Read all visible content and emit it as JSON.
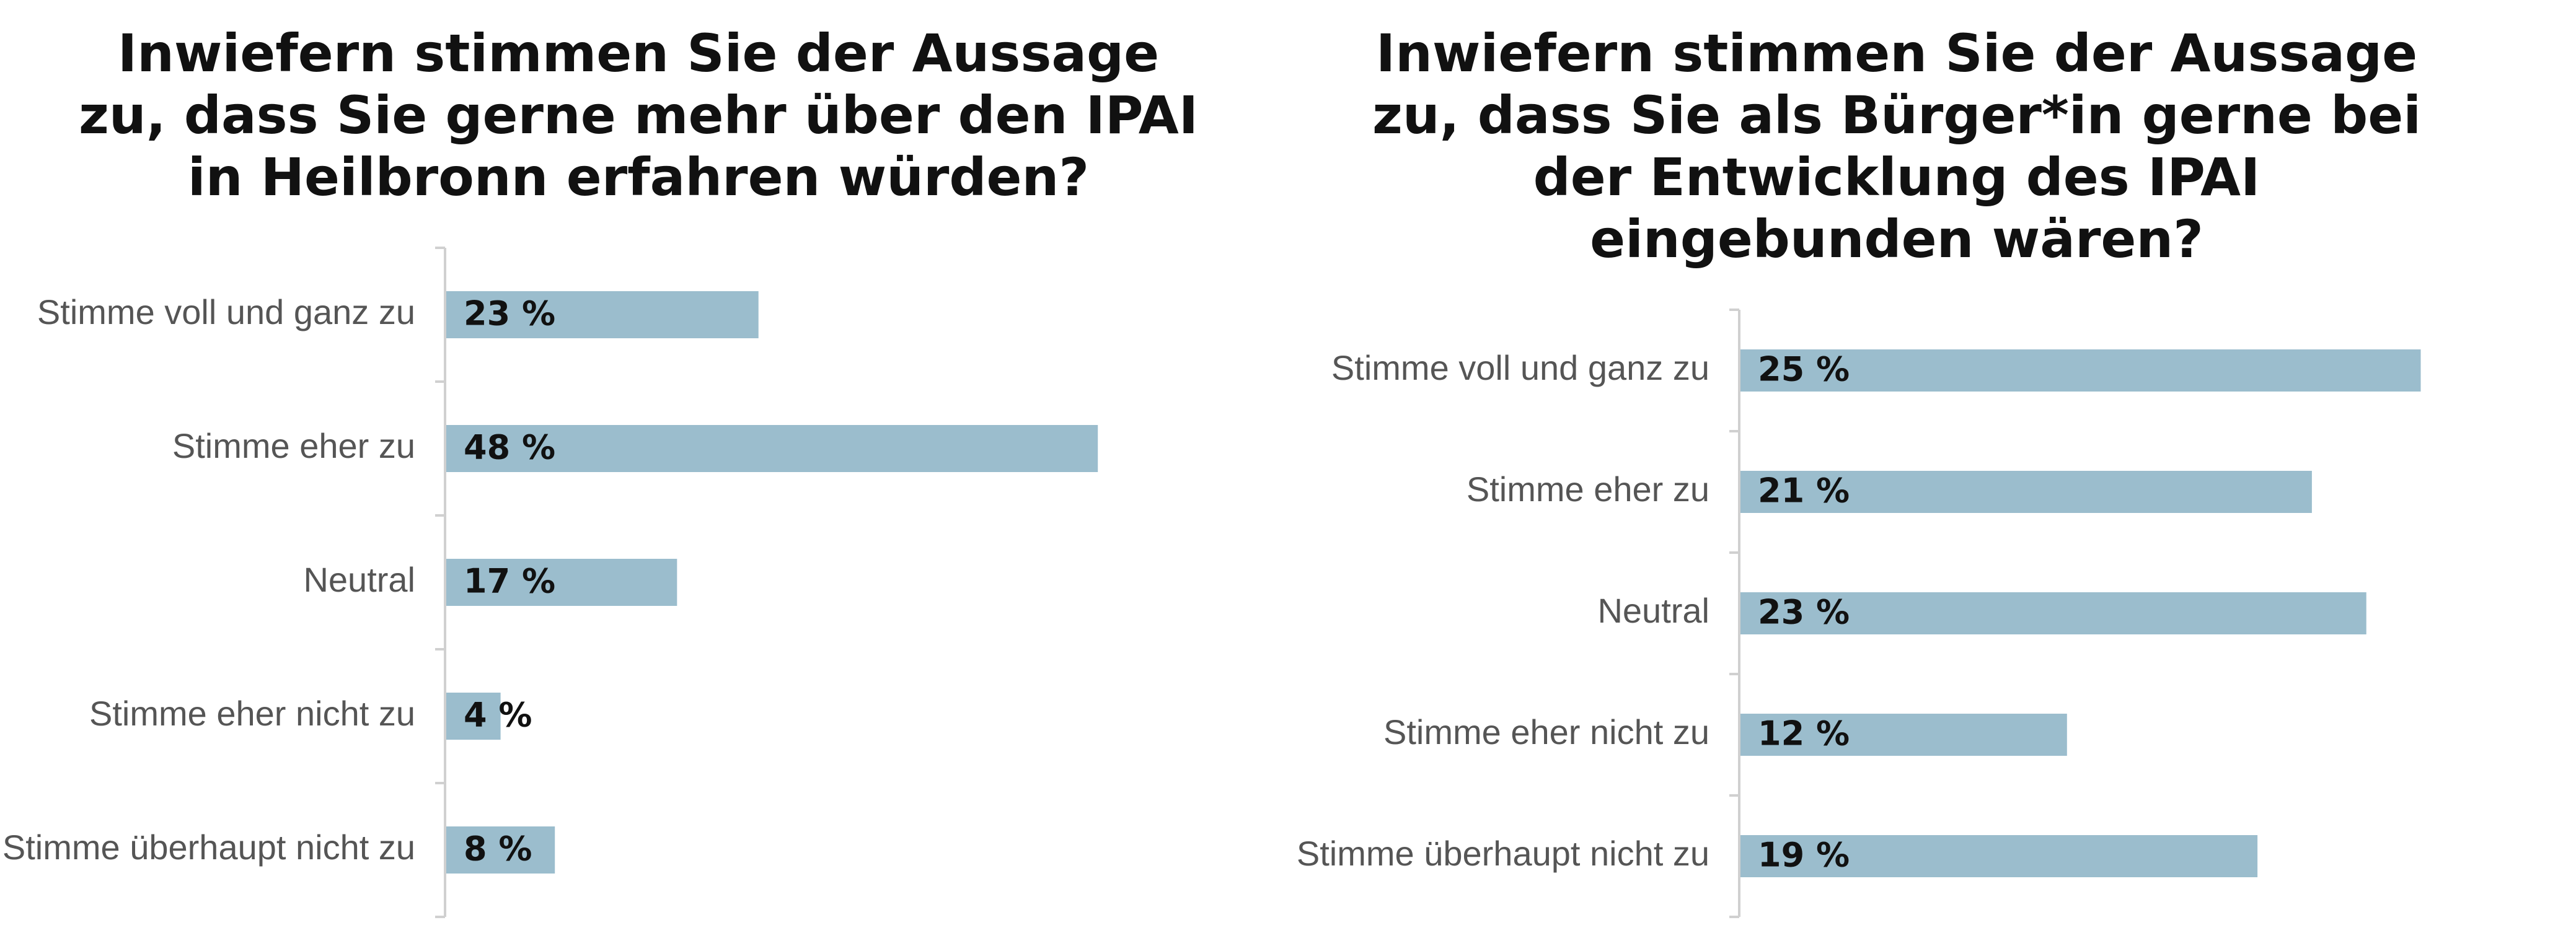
{
  "colors": {
    "bar": "#9BBDCD",
    "axis": "#D0D0D0",
    "category_text": "#555555",
    "value_text": "#111111",
    "title_text": "#111111"
  },
  "chart_data": [
    {
      "type": "bar",
      "orientation": "horizontal",
      "title": "Inwiefern stimmen Sie der Aussage zu, dass Sie gerne mehr über den IPAI in Heilbronn erfahren würden?",
      "categories": [
        "Stimme voll und ganz zu",
        "Stimme eher zu",
        "Neutral",
        "Stimme eher nicht zu",
        "Stimme überhaupt nicht zu"
      ],
      "values": [
        23,
        48,
        17,
        4,
        8
      ],
      "value_labels": [
        "23 %",
        "48 %",
        "17 %",
        "4 %",
        "8 %"
      ],
      "unit": "%",
      "grid": false,
      "legend": "none"
    },
    {
      "type": "bar",
      "orientation": "horizontal",
      "title": "Inwiefern stimmen Sie der Aussage zu, dass Sie als Bürger*in gerne bei der Entwicklung des IPAI eingebunden wären?",
      "categories": [
        "Stimme voll und ganz zu",
        "Stimme eher zu",
        "Neutral",
        "Stimme eher nicht zu",
        "Stimme überhaupt nicht zu"
      ],
      "values": [
        25,
        21,
        23,
        12,
        19
      ],
      "value_labels": [
        "25 %",
        "21 %",
        "23 %",
        "12 %",
        "19 %"
      ],
      "unit": "%",
      "grid": false,
      "legend": "none"
    }
  ]
}
